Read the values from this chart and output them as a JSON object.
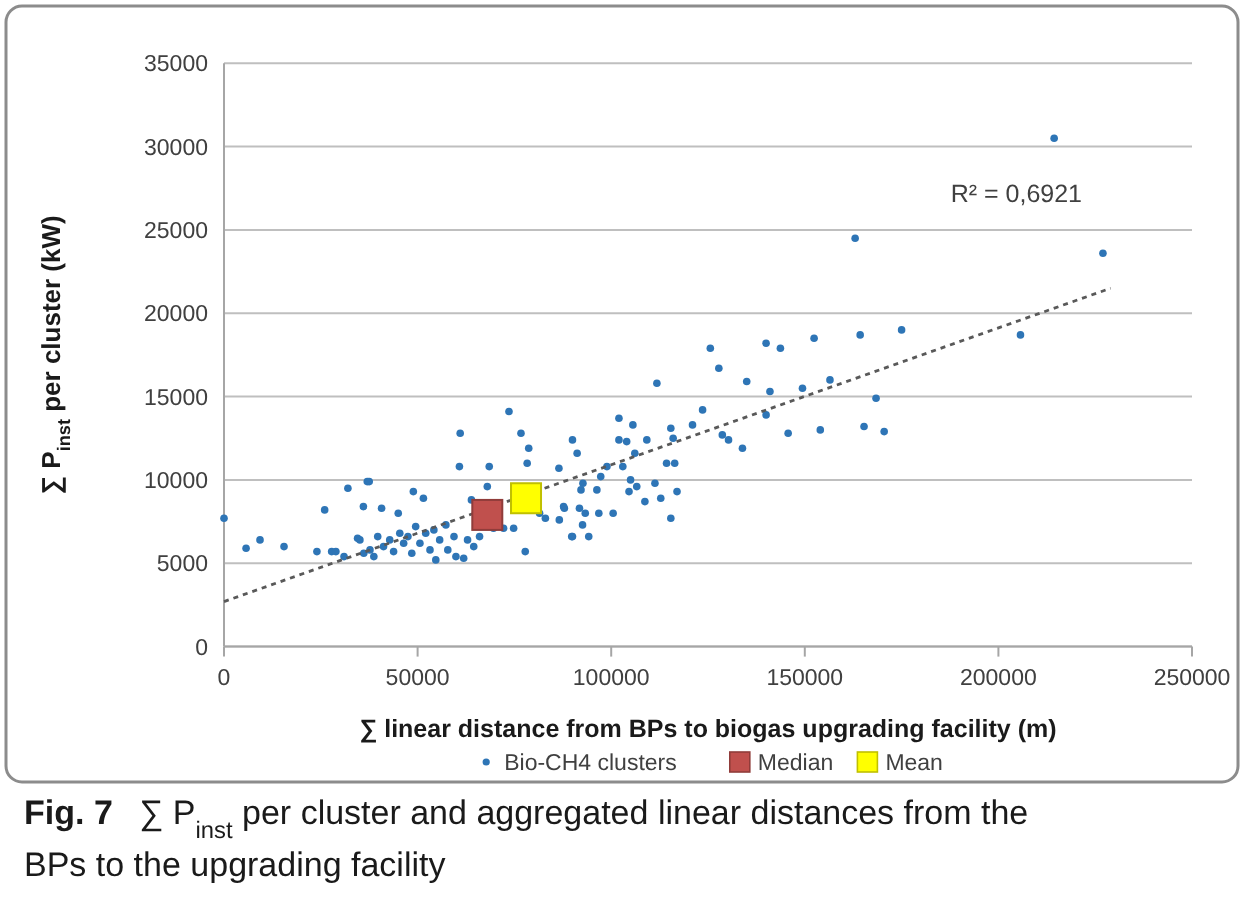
{
  "chart_data": {
    "type": "scatter",
    "title": "Fig. 7",
    "subtitle": "∑ P$_{inst}$ per cluster and aggregated linear distances from the BPs to the upgrading facility",
    "xlabel": "∑ linear distance from BPs to biogas upgrading facility (m)",
    "ylabel": "∑ P$_{inst}$ per cluster  (kW)",
    "xlim": [
      0,
      250000
    ],
    "xticks": [
      0,
      50000,
      100000,
      150000,
      200000,
      250000
    ],
    "ylim": [
      0,
      35000
    ],
    "yticks": [
      0,
      5000,
      10000,
      15000,
      20000,
      25000,
      30000,
      35000
    ],
    "grid": "y",
    "legend": "bottom",
    "annotations": [
      "R² = 0,6921"
    ],
    "series": [
      {
        "name": "Bio-CH4 clusters",
        "marker": "circle",
        "color": "#2e75b6",
        "x": [
          0,
          5700,
          9300,
          15500,
          24000,
          26000,
          27800,
          32000,
          37000,
          37500,
          36000,
          34500,
          40700,
          45000,
          48900,
          51500,
          61000,
          60800,
          68500,
          73600,
          76700,
          78700,
          78300,
          68000,
          63900,
          86500,
          90000,
          91200,
          92200,
          175000,
          164300,
          152400,
          140000,
          143700,
          125600,
          127800,
          111800,
          135000,
          141000,
          149400,
          156500,
          168400,
          165300,
          170500,
          154000,
          145700,
          140000,
          133900,
          130300,
          128700,
          123600,
          121000,
          115400,
          116000,
          114300,
          116400,
          117000,
          115400,
          112800,
          111300,
          108700,
          109200,
          105600,
          102000,
          102000,
          106100,
          104000,
          103000,
          98900,
          97300,
          92700,
          105000,
          106600,
          104600,
          100500,
          96800,
          96300,
          94200,
          90000,
          93300,
          92600,
          87900,
          214400,
          227000,
          205700,
          163000,
          28900,
          31000,
          35100,
          36100,
          37700,
          38700,
          39700,
          41200,
          42800,
          43800,
          45400,
          46400,
          47500,
          48500,
          49500,
          50600,
          52100,
          53200,
          54200,
          54700,
          55700,
          57300,
          57800,
          59400,
          59900,
          61900,
          62900,
          64500,
          66000,
          69600,
          72200,
          74800,
          77800,
          83000,
          81500,
          86600,
          91800,
          89800,
          87700
        ],
        "values": [
          7700,
          5900,
          6400,
          6000,
          5700,
          8200,
          5700,
          9500,
          9900,
          9900,
          8400,
          6500,
          8300,
          8000,
          9300,
          8900,
          12800,
          10800,
          10800,
          14100,
          12800,
          11900,
          11000,
          9600,
          8800,
          10700,
          12400,
          11600,
          9400,
          19000,
          18700,
          18500,
          18200,
          17900,
          17900,
          16700,
          15800,
          15900,
          15300,
          15500,
          16000,
          14900,
          13200,
          12900,
          13000,
          12800,
          13900,
          11900,
          12400,
          12700,
          14200,
          13300,
          13100,
          12500,
          11000,
          11000,
          9300,
          7700,
          8900,
          9800,
          8700,
          12400,
          13300,
          13700,
          12400,
          11600,
          12300,
          10800,
          10800,
          10200,
          9800,
          10000,
          9600,
          9300,
          8000,
          8000,
          9400,
          6600,
          6600,
          8000,
          7300,
          8300,
          30500,
          23600,
          18700,
          24500,
          5700,
          5400,
          6400,
          5600,
          5800,
          5400,
          6600,
          6000,
          6400,
          5700,
          6800,
          6200,
          6600,
          5600,
          7200,
          6200,
          6800,
          5800,
          7000,
          5200,
          6400,
          7300,
          5800,
          6600,
          5400,
          5300,
          6400,
          6000,
          6600,
          7100,
          7100,
          7100,
          5700,
          7700,
          8000,
          7600,
          8300,
          6600,
          8400
        ]
      },
      {
        "name": "Median",
        "marker": "square",
        "color": "#c0504d",
        "x": [
          68000
        ],
        "values": [
          7900
        ]
      },
      {
        "name": "Mean",
        "marker": "square",
        "color": "#ffff00",
        "x": [
          78000
        ],
        "values": [
          8900
        ]
      },
      {
        "type": "line",
        "line_style": "dotted",
        "color": "#595959",
        "x": [
          0,
          229000
        ],
        "values": [
          2700,
          21500
        ]
      }
    ]
  }
}
